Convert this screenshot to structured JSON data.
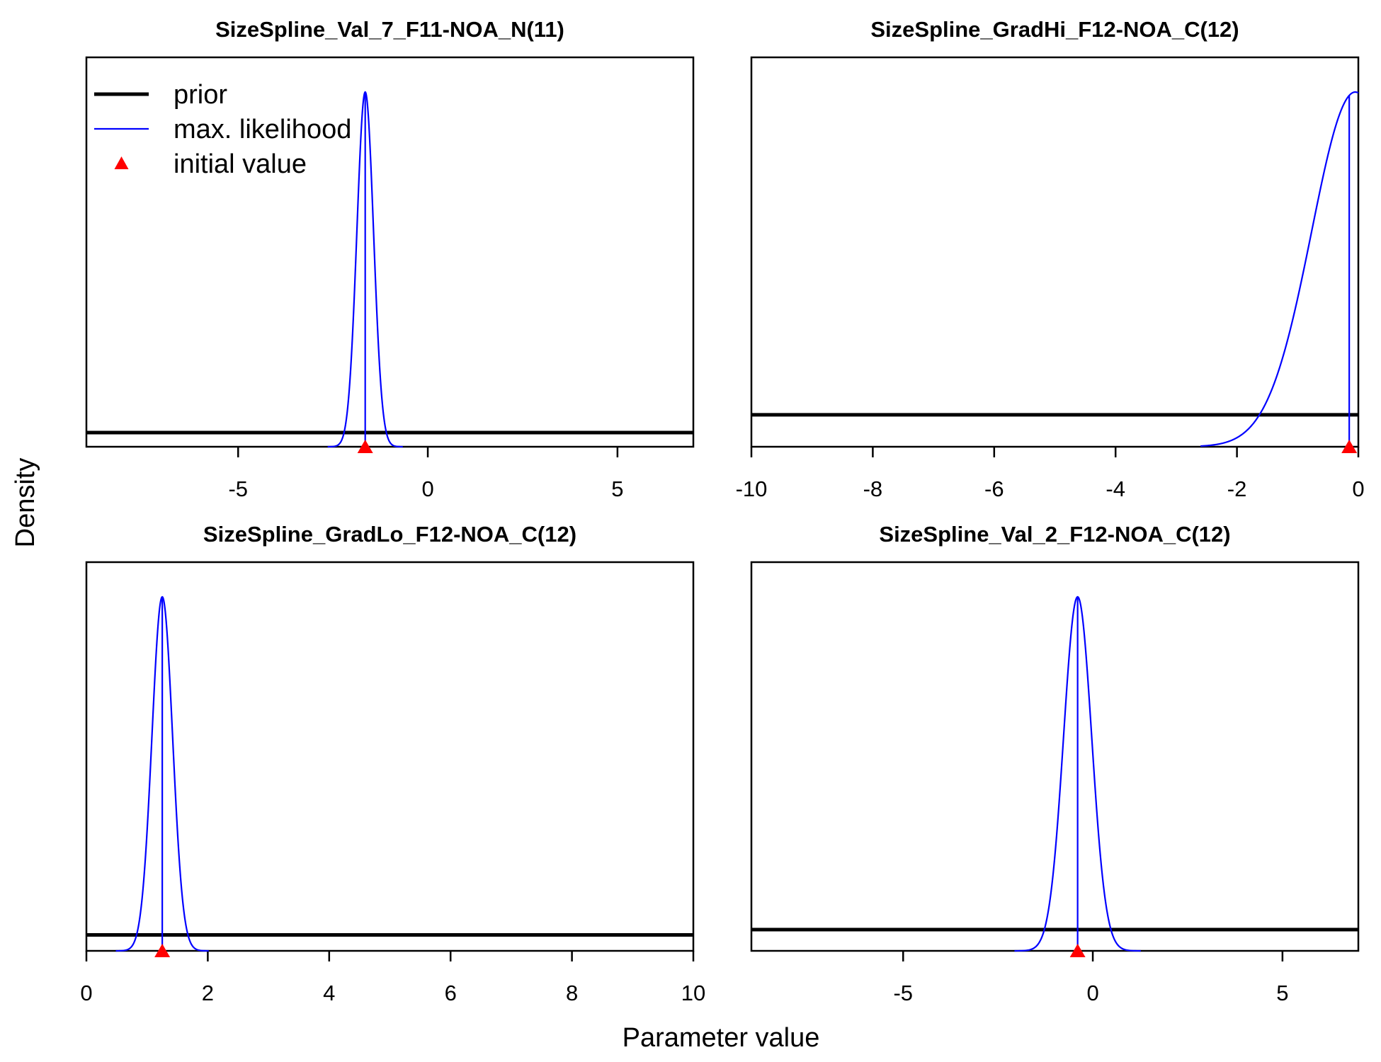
{
  "figure": {
    "xlabel": "Parameter value",
    "ylabel": "Density"
  },
  "legend": {
    "position": "top-left",
    "items": [
      {
        "label": "prior",
        "color": "#000000",
        "kind": "thick-line"
      },
      {
        "label": "max. likelihood",
        "color": "#0000ff",
        "kind": "thin-line"
      },
      {
        "label": "initial value",
        "color": "#ff0000",
        "kind": "triangle"
      }
    ]
  },
  "colors": {
    "prior": "#000000",
    "mle": "#0000ff",
    "initial": "#ff0000"
  },
  "chart_data": [
    {
      "type": "line",
      "title": "SizeSpline_Val_7_F11-NOA_N(11)",
      "xlim": [
        -9,
        7
      ],
      "xticks": [
        -5,
        0,
        5
      ],
      "xtick_labels": [
        "-5",
        "0",
        "5"
      ],
      "prior": {
        "shape": "flat",
        "level": 0.04
      },
      "mle": {
        "shape": "normal",
        "mean": -1.65,
        "sd": 0.22,
        "vline": -1.65,
        "peak": 1.0,
        "cutoff": null
      },
      "initial_value": -1.65
    },
    {
      "type": "line",
      "title": "SizeSpline_GradHi_F12-NOA_C(12)",
      "xlim": [
        -10,
        0
      ],
      "xticks": [
        -10,
        -8,
        -6,
        -4,
        -2,
        0
      ],
      "xtick_labels": [
        "-10",
        "-8",
        "-6",
        "-4",
        "-2",
        "0"
      ],
      "prior": {
        "shape": "flat",
        "level": 0.09
      },
      "mle": {
        "shape": "normal",
        "mean": -0.05,
        "sd": 0.72,
        "vline": -0.15,
        "peak": 1.0,
        "cutoff": -2.6
      },
      "initial_value": -0.15
    },
    {
      "type": "line",
      "title": "SizeSpline_GradLo_F12-NOA_C(12)",
      "xlim": [
        0,
        10
      ],
      "xticks": [
        0,
        2,
        4,
        6,
        8,
        10
      ],
      "xtick_labels": [
        "0",
        "2",
        "4",
        "6",
        "8",
        "10"
      ],
      "prior": {
        "shape": "flat",
        "level": 0.045
      },
      "mle": {
        "shape": "normal",
        "mean": 1.25,
        "sd": 0.17,
        "vline": 1.25,
        "peak": 1.0,
        "cutoff": null
      },
      "initial_value": 1.25
    },
    {
      "type": "line",
      "title": "SizeSpline_Val_2_F12-NOA_C(12)",
      "xlim": [
        -9,
        7
      ],
      "xticks": [
        -5,
        0,
        5
      ],
      "xtick_labels": [
        "-5",
        "0",
        "5"
      ],
      "prior": {
        "shape": "flat",
        "level": 0.06
      },
      "mle": {
        "shape": "normal",
        "mean": -0.4,
        "sd": 0.37,
        "vline": -0.4,
        "peak": 1.0,
        "cutoff": null
      },
      "initial_value": -0.4
    }
  ]
}
